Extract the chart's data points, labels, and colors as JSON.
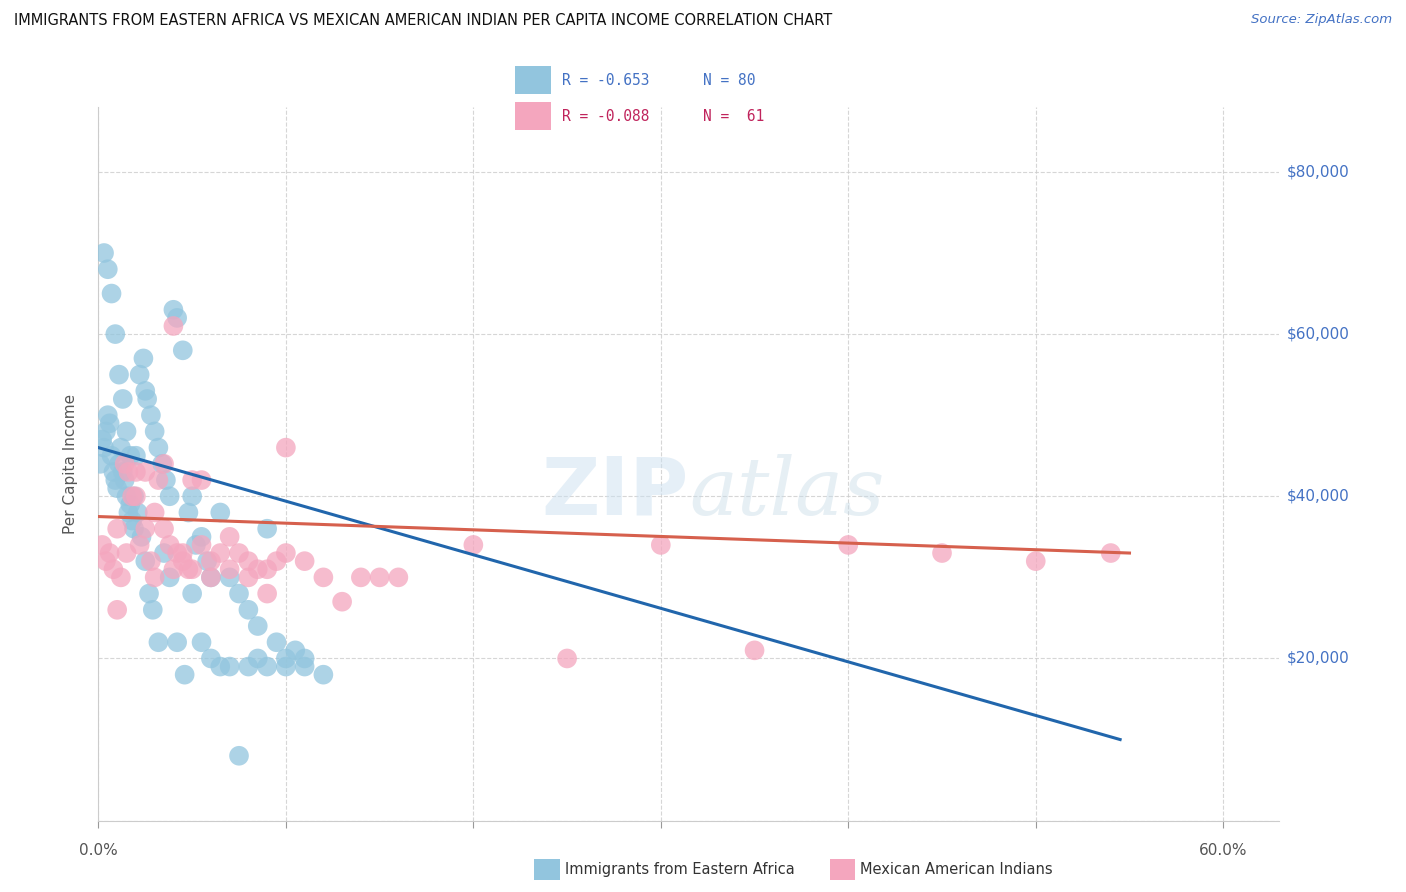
{
  "title": "IMMIGRANTS FROM EASTERN AFRICA VS MEXICAN AMERICAN INDIAN PER CAPITA INCOME CORRELATION CHART",
  "source": "Source: ZipAtlas.com",
  "ylabel": "Per Capita Income",
  "legend_blue_R": "-0.653",
  "legend_blue_N": "80",
  "legend_pink_R": "-0.088",
  "legend_pink_N": "61",
  "legend_blue_label": "Immigrants from Eastern Africa",
  "legend_pink_label": "Mexican American Indians",
  "yticks": [
    0,
    20000,
    40000,
    60000,
    80000
  ],
  "ytick_labels": [
    "",
    "$20,000",
    "$40,000",
    "$60,000",
    "$80,000"
  ],
  "xticks": [
    0.0,
    0.1,
    0.2,
    0.3,
    0.4,
    0.5,
    0.6
  ],
  "xlim": [
    0.0,
    0.63
  ],
  "ylim": [
    0,
    88000
  ],
  "blue_color": "#92c5de",
  "pink_color": "#f4a6be",
  "blue_line_color": "#2166ac",
  "pink_line_color": "#d6604d",
  "watermark_zip": "ZIP",
  "watermark_atlas": "atlas",
  "background": "#ffffff",
  "grid_color": "#cccccc",
  "blue_scatter_x": [
    0.001,
    0.002,
    0.003,
    0.004,
    0.005,
    0.006,
    0.007,
    0.008,
    0.009,
    0.01,
    0.011,
    0.012,
    0.013,
    0.014,
    0.015,
    0.016,
    0.017,
    0.018,
    0.019,
    0.02,
    0.022,
    0.024,
    0.025,
    0.026,
    0.028,
    0.03,
    0.032,
    0.034,
    0.036,
    0.038,
    0.04,
    0.042,
    0.045,
    0.048,
    0.05,
    0.052,
    0.055,
    0.058,
    0.06,
    0.065,
    0.07,
    0.075,
    0.08,
    0.085,
    0.09,
    0.095,
    0.1,
    0.105,
    0.11,
    0.12,
    0.003,
    0.005,
    0.007,
    0.009,
    0.011,
    0.013,
    0.015,
    0.017,
    0.019,
    0.021,
    0.023,
    0.025,
    0.027,
    0.029,
    0.032,
    0.035,
    0.038,
    0.042,
    0.046,
    0.05,
    0.055,
    0.06,
    0.065,
    0.07,
    0.075,
    0.08,
    0.085,
    0.09,
    0.1,
    0.11
  ],
  "blue_scatter_y": [
    44000,
    47000,
    46000,
    48000,
    50000,
    49000,
    45000,
    43000,
    42000,
    41000,
    44000,
    46000,
    43000,
    42000,
    40000,
    38000,
    39000,
    37000,
    36000,
    45000,
    55000,
    57000,
    53000,
    52000,
    50000,
    48000,
    46000,
    44000,
    42000,
    40000,
    63000,
    62000,
    58000,
    38000,
    40000,
    34000,
    35000,
    32000,
    30000,
    38000,
    30000,
    28000,
    26000,
    24000,
    36000,
    22000,
    20000,
    21000,
    19000,
    18000,
    70000,
    68000,
    65000,
    60000,
    55000,
    52000,
    48000,
    45000,
    40000,
    38000,
    35000,
    32000,
    28000,
    26000,
    22000,
    33000,
    30000,
    22000,
    18000,
    28000,
    22000,
    20000,
    19000,
    19000,
    8000,
    19000,
    20000,
    19000,
    19000,
    20000
  ],
  "pink_scatter_x": [
    0.002,
    0.004,
    0.006,
    0.008,
    0.01,
    0.012,
    0.014,
    0.016,
    0.018,
    0.02,
    0.022,
    0.025,
    0.028,
    0.03,
    0.032,
    0.035,
    0.038,
    0.04,
    0.042,
    0.045,
    0.048,
    0.05,
    0.055,
    0.06,
    0.065,
    0.07,
    0.075,
    0.08,
    0.085,
    0.09,
    0.095,
    0.1,
    0.11,
    0.12,
    0.13,
    0.14,
    0.15,
    0.16,
    0.2,
    0.25,
    0.3,
    0.35,
    0.4,
    0.45,
    0.5,
    0.54,
    0.01,
    0.015,
    0.02,
    0.025,
    0.03,
    0.035,
    0.04,
    0.045,
    0.05,
    0.055,
    0.06,
    0.07,
    0.08,
    0.09,
    0.1
  ],
  "pink_scatter_y": [
    34000,
    32000,
    33000,
    31000,
    36000,
    30000,
    44000,
    43000,
    40000,
    43000,
    34000,
    36000,
    32000,
    30000,
    42000,
    36000,
    34000,
    31000,
    33000,
    32000,
    31000,
    42000,
    42000,
    30000,
    33000,
    31000,
    33000,
    30000,
    31000,
    28000,
    32000,
    46000,
    32000,
    30000,
    27000,
    30000,
    30000,
    30000,
    34000,
    20000,
    34000,
    21000,
    34000,
    33000,
    32000,
    33000,
    26000,
    33000,
    40000,
    43000,
    38000,
    44000,
    61000,
    33000,
    31000,
    34000,
    32000,
    35000,
    32000,
    31000,
    33000
  ],
  "blue_line_x": [
    0.0,
    0.545
  ],
  "blue_line_y": [
    46000,
    10000
  ],
  "pink_line_x": [
    0.0,
    0.55
  ],
  "pink_line_y": [
    37500,
    33000
  ]
}
